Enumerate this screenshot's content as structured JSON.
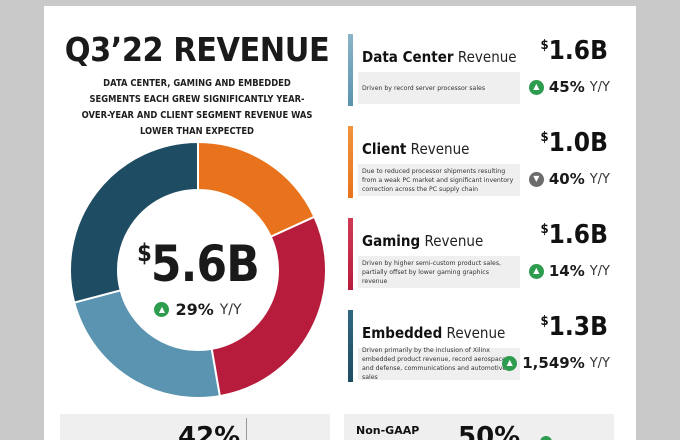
{
  "title": "Q3’22 REVENUE",
  "subtitle": "DATA CENTER, GAMING AND EMBEDDED SEGMENTS EACH GREW SIGNIFICANTLY YEAR-OVER-YEAR AND CLIENT SEGMENT REVENUE WAS LOWER THAN EXPECTED",
  "total": {
    "currency": "$",
    "amount": "5.6B",
    "pct": "29%",
    "yy": "Y/Y"
  },
  "donut": {
    "segments": [
      {
        "name": "Client",
        "value": 1.0,
        "color": "#e8731c"
      },
      {
        "name": "Gaming",
        "value": 1.6,
        "color": "#b81c3c"
      },
      {
        "name": "Embedded",
        "value": 1.3,
        "color": "#5a94b0"
      },
      {
        "name": "Data Center",
        "value": 1.6,
        "color": "#1e4c62"
      }
    ],
    "order_note": ""
  },
  "cards": [
    {
      "name_bold": "Data Center",
      "name_rest": " Revenue",
      "currency": "$",
      "amount": "1.6B",
      "desc": "Driven by record server processor sales",
      "pct": "45%",
      "yy": "Y/Y",
      "direction": "up",
      "bar_color": "#5a94b0",
      "bar_color_top": "#8bb4c7"
    },
    {
      "name_bold": "Client",
      "name_rest": " Revenue",
      "currency": "$",
      "amount": "1.0B",
      "desc": "Due to reduced processor shipments resulting from a weak PC market and significant inventory correction across the PC supply chain",
      "pct": "40%",
      "yy": "Y/Y",
      "direction": "down",
      "bar_color": "#e8731c",
      "bar_color_top": "#f0953e"
    },
    {
      "name_bold": "Gaming",
      "name_rest": " Revenue",
      "currency": "$",
      "amount": "1.6B",
      "desc": "Driven by higher semi-custom product sales, partially offset by lower gaming graphics revenue",
      "pct": "14%",
      "yy": "Y/Y",
      "direction": "up",
      "bar_color": "#b81c3c",
      "bar_color_top": "#d03a55"
    },
    {
      "name_bold": "Embedded",
      "name_rest": " Revenue",
      "currency": "$",
      "amount": "1.3B",
      "desc": "Driven primarily by the inclusion of Xilinx embedded product revenue, record aerospace and defense, communications and automotive sales",
      "pct": "1,549%",
      "yy": "Y/Y",
      "direction": "up",
      "bar_color": "#1e4c62",
      "bar_color_top": "#2f6781"
    }
  ],
  "bottom": {
    "left_value": "42%",
    "right_label": "Non-GAAP",
    "right_value": "50%"
  }
}
